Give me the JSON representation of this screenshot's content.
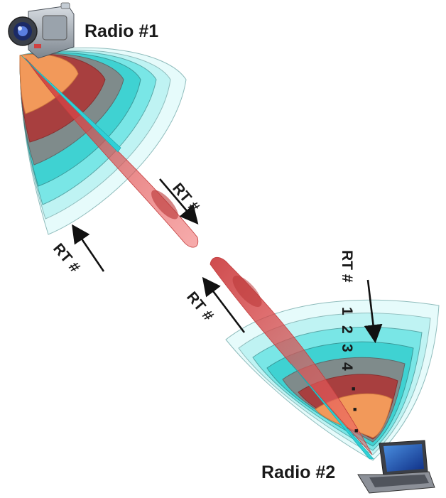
{
  "nodes": {
    "radio1": {
      "label": "Radio #1",
      "icon": "camcorder-icon"
    },
    "radio2": {
      "label": "Radio #2",
      "icon": "laptop-icon"
    }
  },
  "arrows": {
    "rt_tx_top": "RT #",
    "rt_left": "RT #",
    "rt_rx_mid": "RT #",
    "rt_right": "RT #"
  },
  "sequence": {
    "numbers": [
      "1",
      "2",
      "3",
      "4"
    ],
    "dots": [
      "■",
      "■",
      "■"
    ]
  },
  "colors": {
    "band_outer": "#e6fbfb",
    "band_2": "#bff3f3",
    "band_3": "#79e6e6",
    "band_4": "#3fd2d2",
    "band_5": "#7f8b8b",
    "band_6": "#a83f3f",
    "band_core": "#f2995a",
    "beam_cyan": "#2ed0d6",
    "beam_red": "#e04b4b",
    "arrow": "#111111"
  }
}
